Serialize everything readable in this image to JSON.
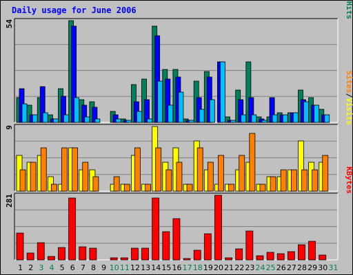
{
  "chart_data": {
    "type": "bar",
    "title": "Daily usage for June 2006",
    "colors": {
      "hits": "#00805c",
      "files": "#0000ff",
      "pages": "#00c0ff",
      "visits": "#ffff00",
      "sites": "#ff8000",
      "kbytes": "#ff0000",
      "panel_bg": "#c0c0c0",
      "title": "#0000ff",
      "weekday_label": "#000000",
      "weekend_label": "#00805c"
    },
    "days": [
      "1",
      "2",
      "3",
      "4",
      "5",
      "6",
      "7",
      "8",
      "9",
      "10",
      "11",
      "12",
      "13",
      "14",
      "15",
      "16",
      "17",
      "18",
      "19",
      "20",
      "21",
      "22",
      "23",
      "24",
      "25",
      "26",
      "27",
      "28",
      "29",
      "30",
      "31"
    ],
    "weekend_days": [
      "3",
      "4",
      "10",
      "11",
      "17",
      "18",
      "24",
      "25",
      "31"
    ],
    "panels": [
      {
        "id": "hits-files-pages",
        "scale_label": "54",
        "ylim": [
          0,
          54
        ],
        "axis_label_parts": [
          {
            "text": "Pages",
            "color": "#00c0ff"
          },
          {
            "text": "/",
            "color": "#000000"
          },
          {
            "text": "Files",
            "color": "#0000ff"
          },
          {
            "text": "/",
            "color": "#000000"
          },
          {
            "text": "Hits",
            "color": "#00805c"
          }
        ],
        "series": [
          {
            "name": "Hits",
            "color": "#00805c",
            "values": [
              13,
              9,
              13,
              4,
              18,
              54,
              12,
              11,
              0,
              6,
              2,
              20,
              23,
              51,
              28,
              28,
              2,
              22,
              27,
              0,
              3,
              17,
              32,
              3,
              3,
              5,
              5,
              17,
              13,
              7,
              0
            ]
          },
          {
            "name": "Files",
            "color": "#0000ff",
            "values": [
              18,
              4,
              19,
              2,
              14,
              51,
              9,
              8,
              0,
              4,
              1,
              11,
              12,
              46,
              23,
              24,
              1,
              13,
              24,
              32,
              1,
              12,
              13,
              2,
              13,
              4,
              5,
              12,
              9,
              4,
              0
            ]
          },
          {
            "name": "Pages",
            "color": "#00c0ff",
            "values": [
              10,
              4,
              5,
              2,
              4,
              13,
              3,
              2,
              0,
              2,
              1,
              6,
              2,
              22,
              9,
              16,
              1,
              7,
              12,
              32,
              1,
              4,
              4,
              1,
              4,
              4,
              5,
              11,
              9,
              4,
              0
            ]
          }
        ]
      },
      {
        "id": "visits-sites",
        "scale_label": "9",
        "ylim": [
          0,
          9
        ],
        "axis_label_parts": [
          {
            "text": "Sites",
            "color": "#ff8000"
          },
          {
            "text": "/",
            "color": "#000000"
          },
          {
            "text": "Visits",
            "color": "#ffff00"
          }
        ],
        "series": [
          {
            "name": "Visits",
            "color": "#ffff00",
            "values": [
              5,
              4,
              5,
              2,
              1,
              6,
              3,
              3,
              0,
              1,
              1,
              5,
              1,
              9,
              4,
              6,
              1,
              7,
              3,
              1,
              1,
              3,
              4,
              1,
              2,
              2,
              3,
              7,
              4,
              4,
              0
            ]
          },
          {
            "name": "Sites",
            "color": "#ff8000",
            "values": [
              3,
              4,
              6,
              1,
              6,
              6,
              4,
              2,
              0,
              2,
              1,
              6,
              1,
              6,
              3,
              4,
              1,
              6,
              4,
              5,
              1,
              5,
              8,
              1,
              2,
              3,
              3,
              3,
              3,
              5,
              0
            ]
          }
        ]
      },
      {
        "id": "kbytes",
        "scale_label": "281",
        "ylim": [
          0,
          281
        ],
        "axis_label_parts": [
          {
            "text": "KBytes",
            "color": "#ff0000"
          }
        ],
        "series": [
          {
            "name": "KBytes",
            "color": "#ff0000",
            "values": [
              117,
              30,
              75,
              15,
              55,
              268,
              58,
              50,
              0,
              10,
              8,
              52,
              50,
              269,
              123,
              178,
              5,
              43,
              113,
              281,
              10,
              48,
              126,
              17,
              34,
              27,
              37,
              65,
              80,
              20,
              0
            ]
          }
        ]
      }
    ]
  }
}
